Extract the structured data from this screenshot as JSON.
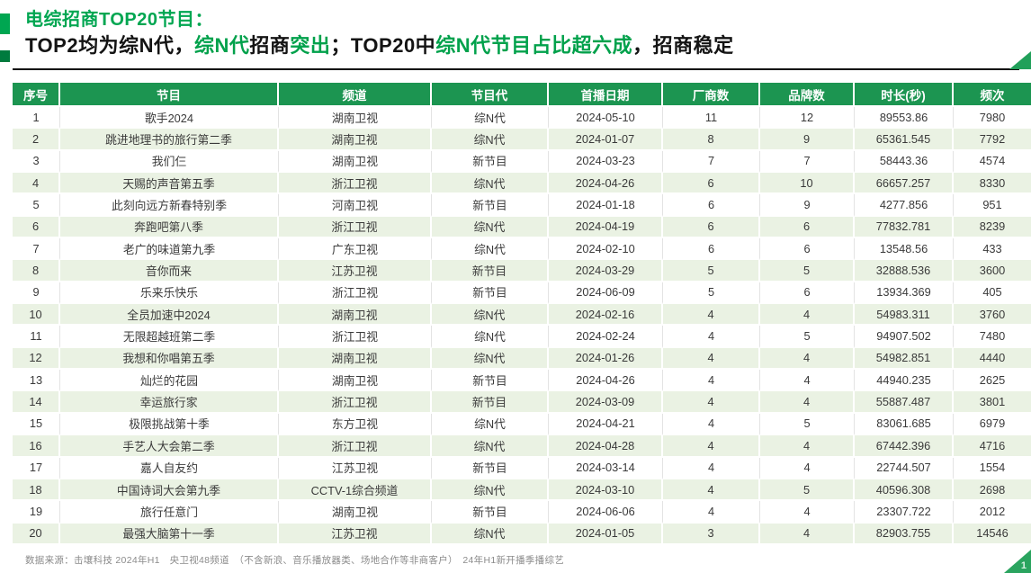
{
  "page": {
    "title_line1": "电综招商TOP20节目：",
    "title_line2_segments": [
      {
        "text": "TOP2均为综N代，",
        "accent": false
      },
      {
        "text": "综N代",
        "accent": true
      },
      {
        "text": "招商",
        "accent": false
      },
      {
        "text": "突出",
        "accent": true
      },
      {
        "text": "；TOP20中",
        "accent": false
      },
      {
        "text": "综N代节目占比超六成",
        "accent": true
      },
      {
        "text": "，招商稳定",
        "accent": false
      }
    ],
    "footer": "数据来源：击壤科技 2024年H1　央卫视48频道　（不含新浪、音乐播放器类、场地合作等非商客户）　24年H1新开播季播综艺",
    "page_number": "1"
  },
  "colors": {
    "title_green": "#00A651",
    "subtitle_green": "#00A14B",
    "header_green": "#1C9551",
    "row_alt_green": "#EAF2E3",
    "accent_dark_green": "#007B3E",
    "footer_gray": "#8b8b8b"
  },
  "table": {
    "headers": [
      "序号",
      "节目",
      "频道",
      "节目代",
      "首播日期",
      "厂商数",
      "品牌数",
      "时长(秒)",
      "频次"
    ],
    "rows": [
      {
        "rank": "1",
        "program": "歌手2024",
        "channel": "湖南卫视",
        "generation": "综N代",
        "premiere_date": "2024-05-10",
        "manufacturers": "11",
        "brands": "12",
        "duration_sec": "89553.86",
        "frequency": "7980"
      },
      {
        "rank": "2",
        "program": "跳进地理书的旅行第二季",
        "channel": "湖南卫视",
        "generation": "综N代",
        "premiere_date": "2024-01-07",
        "manufacturers": "8",
        "brands": "9",
        "duration_sec": "65361.545",
        "frequency": "7792"
      },
      {
        "rank": "3",
        "program": "我们仨",
        "channel": "湖南卫视",
        "generation": "新节目",
        "premiere_date": "2024-03-23",
        "manufacturers": "7",
        "brands": "7",
        "duration_sec": "58443.36",
        "frequency": "4574"
      },
      {
        "rank": "4",
        "program": "天赐的声音第五季",
        "channel": "浙江卫视",
        "generation": "综N代",
        "premiere_date": "2024-04-26",
        "manufacturers": "6",
        "brands": "10",
        "duration_sec": "66657.257",
        "frequency": "8330"
      },
      {
        "rank": "5",
        "program": "此刻向远方新春特别季",
        "channel": "河南卫视",
        "generation": "新节目",
        "premiere_date": "2024-01-18",
        "manufacturers": "6",
        "brands": "9",
        "duration_sec": "4277.856",
        "frequency": "951"
      },
      {
        "rank": "6",
        "program": "奔跑吧第八季",
        "channel": "浙江卫视",
        "generation": "综N代",
        "premiere_date": "2024-04-19",
        "manufacturers": "6",
        "brands": "6",
        "duration_sec": "77832.781",
        "frequency": "8239"
      },
      {
        "rank": "7",
        "program": "老广的味道第九季",
        "channel": "广东卫视",
        "generation": "综N代",
        "premiere_date": "2024-02-10",
        "manufacturers": "6",
        "brands": "6",
        "duration_sec": "13548.56",
        "frequency": "433"
      },
      {
        "rank": "8",
        "program": "音你而来",
        "channel": "江苏卫视",
        "generation": "新节目",
        "premiere_date": "2024-03-29",
        "manufacturers": "5",
        "brands": "5",
        "duration_sec": "32888.536",
        "frequency": "3600"
      },
      {
        "rank": "9",
        "program": "乐来乐快乐",
        "channel": "浙江卫视",
        "generation": "新节目",
        "premiere_date": "2024-06-09",
        "manufacturers": "5",
        "brands": "6",
        "duration_sec": "13934.369",
        "frequency": "405"
      },
      {
        "rank": "10",
        "program": "全员加速中2024",
        "channel": "湖南卫视",
        "generation": "综N代",
        "premiere_date": "2024-02-16",
        "manufacturers": "4",
        "brands": "4",
        "duration_sec": "54983.311",
        "frequency": "3760"
      },
      {
        "rank": "11",
        "program": "无限超越班第二季",
        "channel": "浙江卫视",
        "generation": "综N代",
        "premiere_date": "2024-02-24",
        "manufacturers": "4",
        "brands": "5",
        "duration_sec": "94907.502",
        "frequency": "7480"
      },
      {
        "rank": "12",
        "program": "我想和你唱第五季",
        "channel": "湖南卫视",
        "generation": "综N代",
        "premiere_date": "2024-01-26",
        "manufacturers": "4",
        "brands": "4",
        "duration_sec": "54982.851",
        "frequency": "4440"
      },
      {
        "rank": "13",
        "program": "灿烂的花园",
        "channel": "湖南卫视",
        "generation": "新节目",
        "premiere_date": "2024-04-26",
        "manufacturers": "4",
        "brands": "4",
        "duration_sec": "44940.235",
        "frequency": "2625"
      },
      {
        "rank": "14",
        "program": "幸运旅行家",
        "channel": "浙江卫视",
        "generation": "新节目",
        "premiere_date": "2024-03-09",
        "manufacturers": "4",
        "brands": "4",
        "duration_sec": "55887.487",
        "frequency": "3801"
      },
      {
        "rank": "15",
        "program": "极限挑战第十季",
        "channel": "东方卫视",
        "generation": "综N代",
        "premiere_date": "2024-04-21",
        "manufacturers": "4",
        "brands": "5",
        "duration_sec": "83061.685",
        "frequency": "6979"
      },
      {
        "rank": "16",
        "program": "手艺人大会第二季",
        "channel": "浙江卫视",
        "generation": "综N代",
        "premiere_date": "2024-04-28",
        "manufacturers": "4",
        "brands": "4",
        "duration_sec": "67442.396",
        "frequency": "4716"
      },
      {
        "rank": "17",
        "program": "嘉人自友约",
        "channel": "江苏卫视",
        "generation": "新节目",
        "premiere_date": "2024-03-14",
        "manufacturers": "4",
        "brands": "4",
        "duration_sec": "22744.507",
        "frequency": "1554"
      },
      {
        "rank": "18",
        "program": "中国诗词大会第九季",
        "channel": "CCTV-1综合频道",
        "generation": "综N代",
        "premiere_date": "2024-03-10",
        "manufacturers": "4",
        "brands": "5",
        "duration_sec": "40596.308",
        "frequency": "2698"
      },
      {
        "rank": "19",
        "program": "旅行任意门",
        "channel": "湖南卫视",
        "generation": "新节目",
        "premiere_date": "2024-06-06",
        "manufacturers": "4",
        "brands": "4",
        "duration_sec": "23307.722",
        "frequency": "2012"
      },
      {
        "rank": "20",
        "program": "最强大脑第十一季",
        "channel": "江苏卫视",
        "generation": "综N代",
        "premiere_date": "2024-01-05",
        "manufacturers": "3",
        "brands": "4",
        "duration_sec": "82903.755",
        "frequency": "14546"
      }
    ]
  }
}
